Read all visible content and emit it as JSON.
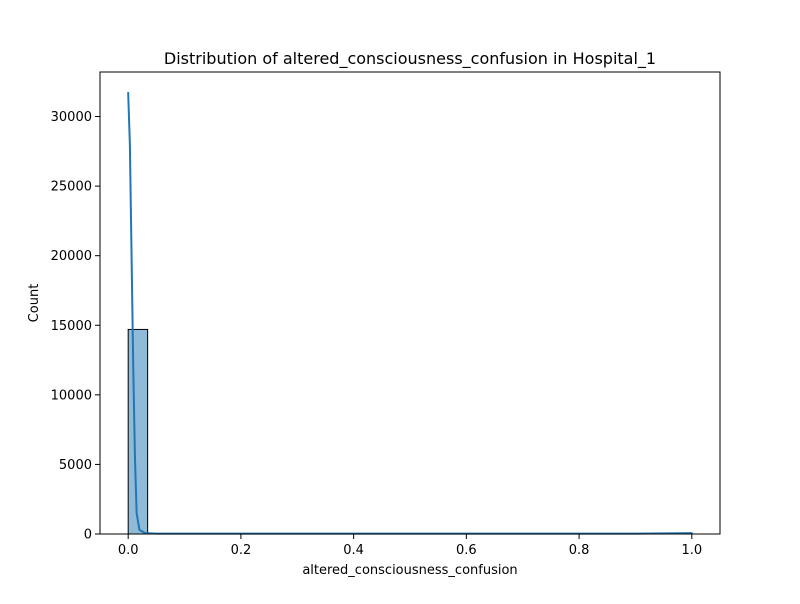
{
  "chart_data": {
    "type": "bar",
    "title": "Distribution of altered_consciousness_confusion in Hospital_1",
    "xlabel": "altered_consciousness_confusion",
    "ylabel": "Count",
    "xlim": [
      -0.05,
      1.05
    ],
    "ylim": [
      0,
      33200
    ],
    "x_ticks": [
      0.0,
      0.2,
      0.4,
      0.6,
      0.8,
      1.0
    ],
    "x_tick_labels": [
      "0.0",
      "0.2",
      "0.4",
      "0.6",
      "0.8",
      "1.0"
    ],
    "y_ticks": [
      0,
      5000,
      10000,
      15000,
      20000,
      25000,
      30000
    ],
    "y_tick_labels": [
      "0",
      "5000",
      "10000",
      "15000",
      "20000",
      "25000",
      "30000"
    ],
    "bins": [
      {
        "x0": 0.0,
        "x1": 0.0345,
        "count": 14700
      },
      {
        "x0": 0.0345,
        "x1": 0.069,
        "count": 0
      },
      {
        "x0": 0.069,
        "x1": 0.1034,
        "count": 0
      },
      {
        "x0": 0.1034,
        "x1": 0.1379,
        "count": 0
      },
      {
        "x0": 0.1379,
        "x1": 0.1724,
        "count": 0
      },
      {
        "x0": 0.1724,
        "x1": 0.2069,
        "count": 0
      },
      {
        "x0": 0.2069,
        "x1": 0.2414,
        "count": 0
      },
      {
        "x0": 0.2414,
        "x1": 0.2759,
        "count": 0
      },
      {
        "x0": 0.2759,
        "x1": 0.3103,
        "count": 0
      },
      {
        "x0": 0.3103,
        "x1": 0.3448,
        "count": 0
      },
      {
        "x0": 0.3448,
        "x1": 0.3793,
        "count": 0
      },
      {
        "x0": 0.3793,
        "x1": 0.4138,
        "count": 0
      },
      {
        "x0": 0.4138,
        "x1": 0.4483,
        "count": 0
      },
      {
        "x0": 0.4483,
        "x1": 0.4828,
        "count": 0
      },
      {
        "x0": 0.4828,
        "x1": 0.5172,
        "count": 0
      },
      {
        "x0": 0.5172,
        "x1": 0.5517,
        "count": 0
      },
      {
        "x0": 0.5517,
        "x1": 0.5862,
        "count": 0
      },
      {
        "x0": 0.5862,
        "x1": 0.6207,
        "count": 0
      },
      {
        "x0": 0.6207,
        "x1": 0.6552,
        "count": 0
      },
      {
        "x0": 0.6552,
        "x1": 0.6897,
        "count": 0
      },
      {
        "x0": 0.6897,
        "x1": 0.7241,
        "count": 0
      },
      {
        "x0": 0.7241,
        "x1": 0.7586,
        "count": 0
      },
      {
        "x0": 0.7586,
        "x1": 0.7931,
        "count": 0
      },
      {
        "x0": 0.7931,
        "x1": 0.8276,
        "count": 0
      },
      {
        "x0": 0.8276,
        "x1": 0.8621,
        "count": 0
      },
      {
        "x0": 0.8621,
        "x1": 0.8966,
        "count": 0
      },
      {
        "x0": 0.8966,
        "x1": 0.931,
        "count": 0
      },
      {
        "x0": 0.931,
        "x1": 0.9655,
        "count": 0
      },
      {
        "x0": 0.9655,
        "x1": 1.0,
        "count": 15
      }
    ],
    "kde": {
      "x": [
        0.0,
        0.003,
        0.006,
        0.009,
        0.012,
        0.015,
        0.02,
        0.03,
        0.05,
        0.1,
        0.3,
        0.5,
        0.7,
        0.9,
        1.0
      ],
      "y": [
        31700,
        28000,
        20000,
        12000,
        5500,
        1500,
        300,
        60,
        30,
        30,
        30,
        30,
        30,
        30,
        60
      ]
    },
    "grid": false,
    "legend": "none",
    "colors": {
      "bar_fill": "#1f77b4",
      "bar_fill_opacity": 0.5,
      "bar_edge": "#000000",
      "kde_line": "#1f77b4"
    }
  }
}
